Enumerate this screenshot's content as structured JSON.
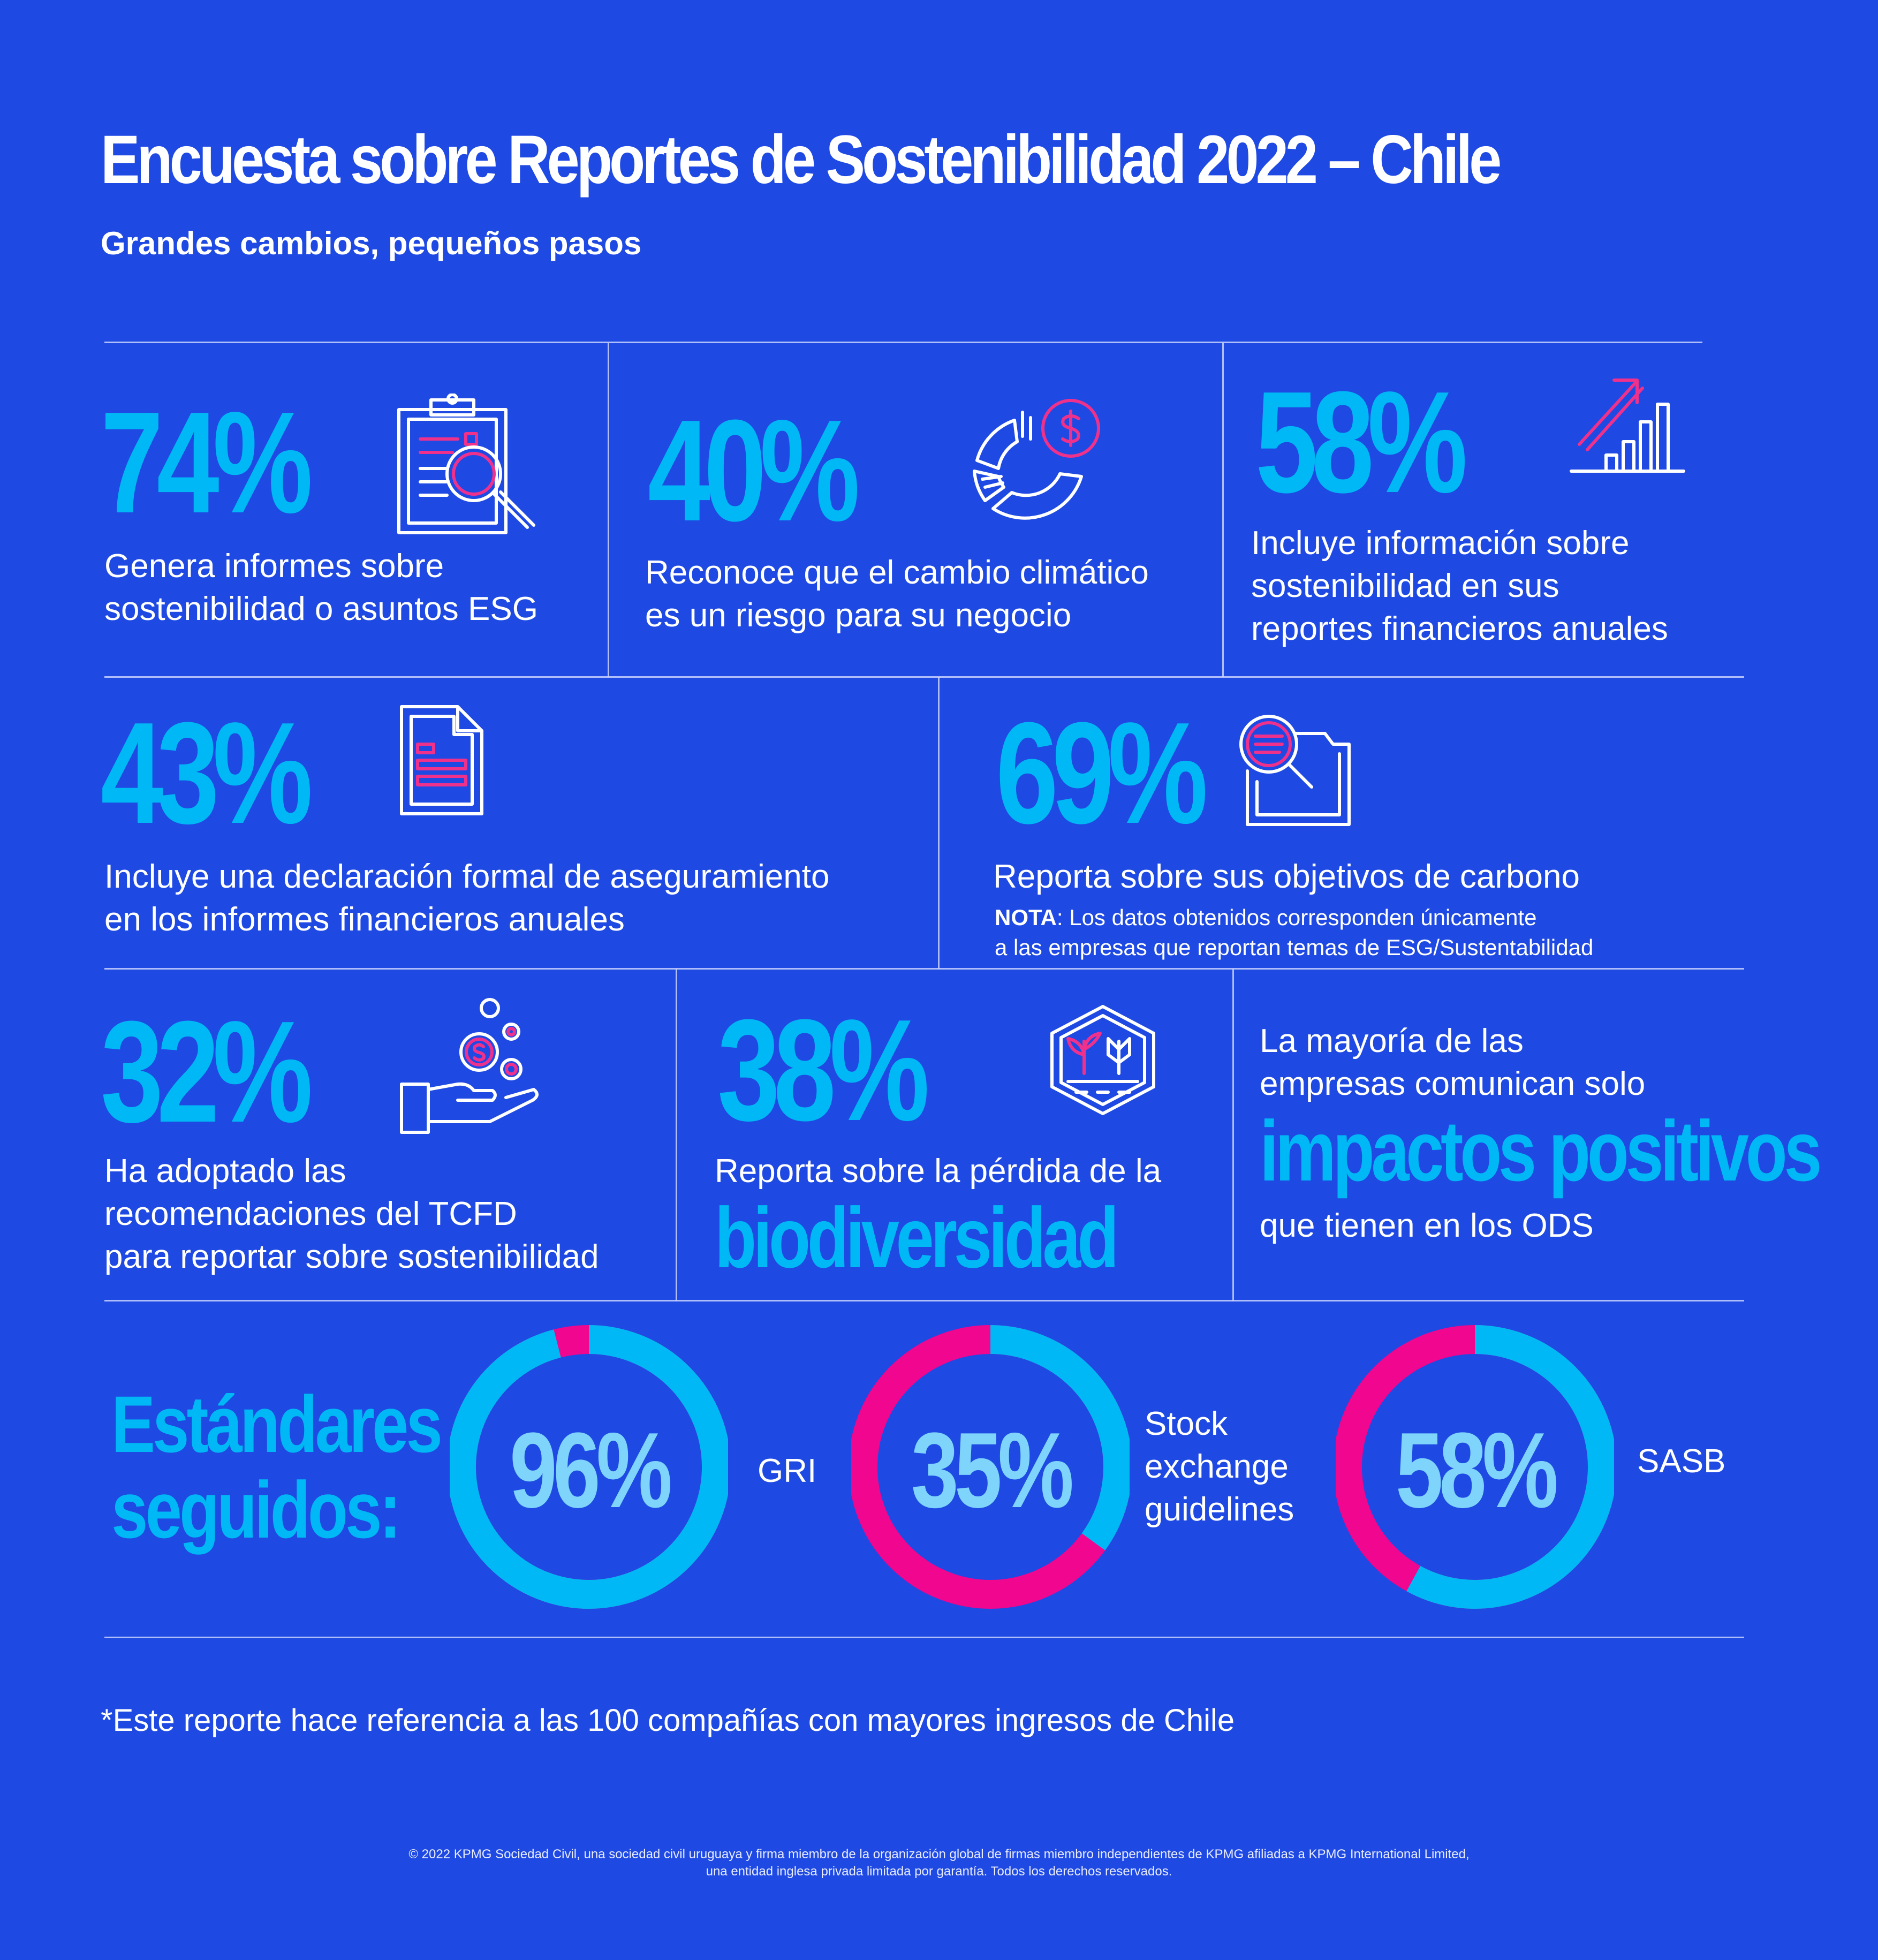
{
  "header": {
    "title": "Encuesta sobre Reportes de Sostenibilidad 2022 – Chile",
    "subtitle": "Grandes cambios, pequeños pasos"
  },
  "stats": [
    {
      "value": "74%",
      "lines": [
        "Genera informes sobre",
        "sostenibilidad o asuntos ESG"
      ],
      "icon": "clipboard-search-icon"
    },
    {
      "value": "40%",
      "lines": [
        "Reconoce que el cambio climático",
        "es un riesgo para su negocio"
      ],
      "icon": "pie-dollar-icon"
    },
    {
      "value": "58%",
      "lines": [
        "Incluye información sobre",
        "sostenibilidad en sus",
        "reportes financieros anuales"
      ],
      "icon": "growth-chart-icon"
    },
    {
      "value": "43%",
      "lines": [
        "Incluye una declaración formal de aseguramiento",
        "en los informes financieros anuales"
      ],
      "icon": "document-icon"
    },
    {
      "value": "69%",
      "lines": [
        "Reporta sobre sus objetivos de carbono"
      ],
      "note_bold": "NOTA",
      "note_lines": [
        ": Los datos obtenidos corresponden únicamente",
        "a las empresas que reportan temas de ESG/Sustentabilidad"
      ],
      "icon": "folder-search-icon"
    },
    {
      "value": "32%",
      "lines": [
        "Ha adoptado las",
        "recomendaciones del TCFD",
        "para reportar sobre sostenibilidad"
      ],
      "icon": "hand-coins-icon"
    },
    {
      "value": "38%",
      "lines": [
        "Reporta sobre la pérdida de la"
      ],
      "highlight": "biodiversidad",
      "icon": "plant-hexagon-icon"
    },
    {
      "lines": [
        "La mayoría de las",
        "empresas comunican solo"
      ],
      "highlight": "impactos positivos",
      "after": "que tienen en los ODS"
    }
  ],
  "standards": {
    "title_lines": [
      "Estándares",
      "seguidos:"
    ],
    "items": [
      {
        "value": "96%",
        "percent": 96,
        "label_lines": [
          "GRI"
        ]
      },
      {
        "value": "35%",
        "percent": 35,
        "label_lines": [
          "Stock",
          "exchange",
          "guidelines"
        ]
      },
      {
        "value": "58%",
        "percent": 58,
        "label_lines": [
          "SASB"
        ]
      }
    ]
  },
  "footnote": "*Este reporte hace referencia a las 100 compañías con mayores ingresos de Chile",
  "legal": [
    "© 2022 KPMG Sociedad Civil, una sociedad civil uruguaya y firma miembro de la organización global de firmas miembro independientes de KPMG afiliadas a KPMG International Limited,",
    "una entidad inglesa privada limitada por garantía. Todos los derechos reservados."
  ],
  "colors": {
    "background": "#1E49E2",
    "accent": "#00B8F5",
    "pink": "#F0318C",
    "value_light": "#7FD4FB"
  }
}
